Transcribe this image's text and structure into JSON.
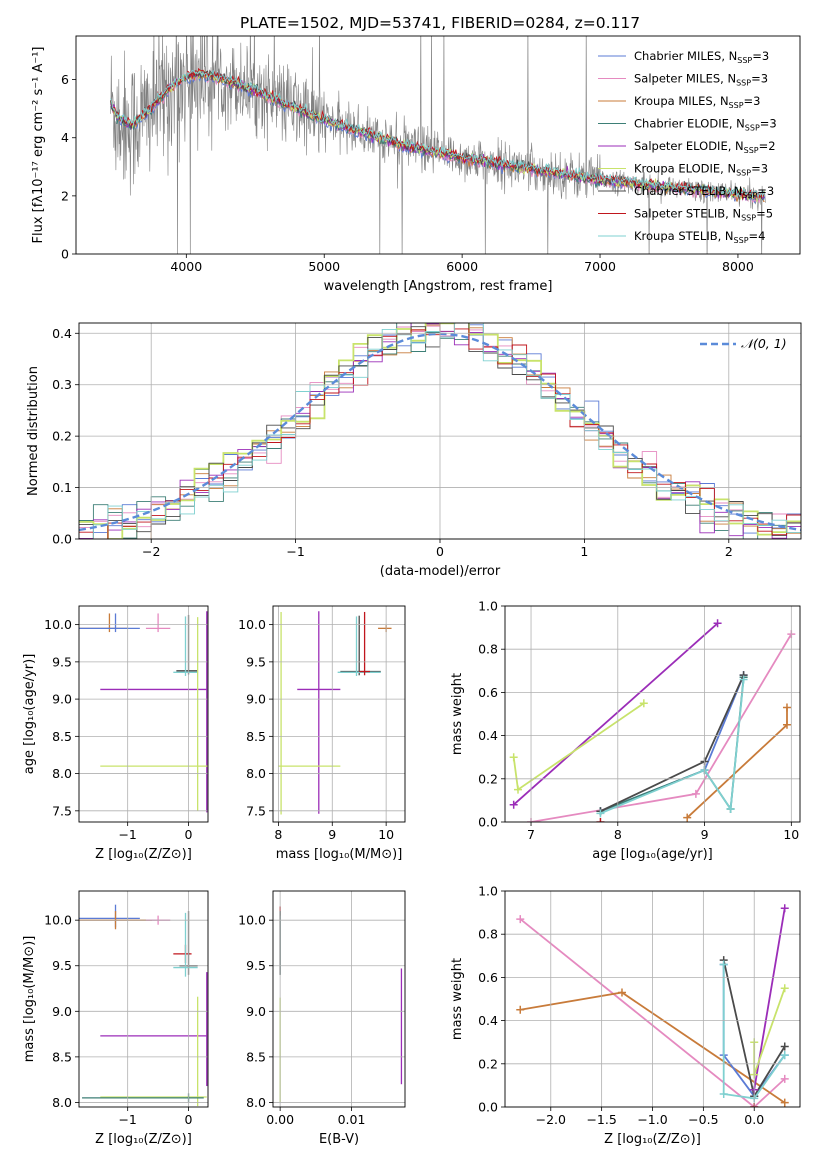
{
  "figure_title": "PLATE=1502, MJD=53741, FIBERID=0284, z=0.117",
  "colors": {
    "Chabrier MILES": "#5b7bd5",
    "Salpeter MILES": "#e58ac0",
    "Kroupa MILES": "#c87b3a",
    "Chabrier ELODIE": "#3d7f76",
    "Salpeter ELODIE": "#9b2db8",
    "Kroupa ELODIE": "#c8e36b",
    "Chabrier STELIB": "#4a4a4a",
    "Salpeter STELIB": "#c0161d",
    "Kroupa STELIB": "#7fd0d0",
    "data": "#808080",
    "normal": "#5b8bd9",
    "grid": "#b0b0b0"
  },
  "chart_data": [
    {
      "type": "line",
      "panel": "spectrum",
      "xlabel": "wavelength [Angstrom, rest frame]",
      "ylabel": "Flux [fλ10⁻¹⁷ erg cm⁻² s⁻¹ A⁻¹]",
      "xlim": [
        3200,
        8450
      ],
      "ylim": [
        0,
        7.5
      ],
      "xticks": [
        4000,
        5000,
        6000,
        7000,
        8000
      ],
      "yticks": [
        0,
        2,
        4,
        6
      ],
      "grid": false,
      "legend_position": "top-right",
      "legend": [
        {
          "name": "Chabrier MILES",
          "label": "Chabrier MILES, N",
          "sub": "SSP",
          "tail": "=3"
        },
        {
          "name": "Salpeter MILES",
          "label": "Salpeter MILES, N",
          "sub": "SSP",
          "tail": "=3"
        },
        {
          "name": "Kroupa MILES",
          "label": "Kroupa MILES, N",
          "sub": "SSP",
          "tail": "=3"
        },
        {
          "name": "Chabrier ELODIE",
          "label": "Chabrier ELODIE, N",
          "sub": "SSP",
          "tail": "=3"
        },
        {
          "name": "Salpeter ELODIE",
          "label": "Salpeter ELODIE, N",
          "sub": "SSP",
          "tail": "=2"
        },
        {
          "name": "Kroupa ELODIE",
          "label": "Kroupa ELODIE, N",
          "sub": "SSP",
          "tail": "=3"
        },
        {
          "name": "Chabrier STELIB",
          "label": "Chabrier STELIB, N",
          "sub": "SSP",
          "tail": "=3"
        },
        {
          "name": "Salpeter STELIB",
          "label": "Salpeter STELIB, N",
          "sub": "SSP",
          "tail": "=5"
        },
        {
          "name": "Kroupa STELIB",
          "label": "Kroupa STELIB, N",
          "sub": "SSP",
          "tail": "=4"
        }
      ],
      "model_continuum": {
        "x": [
          3450,
          3500,
          3600,
          3700,
          3800,
          3900,
          4000,
          4100,
          4200,
          4400,
          4600,
          4800,
          5000,
          5200,
          5400,
          5600,
          5800,
          6000,
          6200,
          6400,
          6600,
          6800,
          7000,
          7200,
          7400,
          7600,
          7800,
          8000,
          8200
        ],
        "y": [
          5.2,
          4.7,
          4.4,
          4.8,
          5.3,
          5.8,
          6.1,
          6.2,
          6.1,
          5.8,
          5.4,
          5.0,
          4.6,
          4.3,
          4.0,
          3.7,
          3.5,
          3.3,
          3.15,
          3.0,
          2.85,
          2.7,
          2.55,
          2.45,
          2.35,
          2.25,
          2.15,
          2.05,
          1.95
        ]
      }
    },
    {
      "type": "bar",
      "panel": "residual-histogram",
      "xlabel": "(data-model)/error",
      "ylabel": "Normed distribution",
      "xlim": [
        -2.5,
        2.5
      ],
      "ylim": [
        0,
        0.42
      ],
      "xticks": [
        -2,
        -1,
        0,
        1,
        2
      ],
      "yticks": [
        0.0,
        0.1,
        0.2,
        0.3,
        0.4
      ],
      "grid": true,
      "legend_position": "top-right",
      "legend": [
        {
          "name": "N(0,1)",
          "label": "𝒩(0, 1)"
        }
      ],
      "bin_width": 0.1,
      "bins_start": -2.5
    },
    {
      "type": "scatter",
      "panel": "age-vs-Z",
      "xlabel": "Z [log₁₀(Z/Z⊙)]",
      "ylabel": "age  [log₁₀(age/yr)]",
      "xlim": [
        -1.8,
        0.32
      ],
      "ylim": [
        7.35,
        10.25
      ],
      "xticks": [
        -1,
        0
      ],
      "yticks": [
        7.5,
        8.0,
        8.5,
        9.0,
        9.5,
        10.0
      ],
      "grid": true,
      "points": [
        {
          "series": "Kroupa MILES",
          "x": -1.3,
          "y": 9.95,
          "xerr": [
            0.5,
            0.3
          ],
          "yerr": [
            0.05,
            0.2
          ]
        },
        {
          "series": "Salpeter MILES",
          "x": -0.5,
          "y": 9.95,
          "xerr": [
            0.2,
            0.2
          ],
          "yerr": [
            0.05,
            0.2
          ]
        },
        {
          "series": "Chabrier MILES",
          "x": -1.2,
          "y": 9.95,
          "xerr": [
            0.6,
            0.4
          ],
          "yerr": [
            0.05,
            0.2
          ]
        },
        {
          "series": "Chabrier STELIB",
          "x": 0.0,
          "y": 9.38,
          "xerr": [
            0.2,
            0.15
          ],
          "yerr": [
            0.05,
            0.75
          ]
        },
        {
          "series": "Kroupa STELIB",
          "x": -0.05,
          "y": 9.36,
          "xerr": [
            0.2,
            0.2
          ],
          "yerr": [
            0.05,
            0.75
          ]
        },
        {
          "series": "Salpeter ELODIE",
          "x": 0.3,
          "y": 9.13,
          "xerr": [
            1.75,
            0.0
          ],
          "yerr": [
            1.65,
            1.05
          ]
        },
        {
          "series": "Kroupa ELODIE",
          "x": 0.15,
          "y": 8.1,
          "xerr": [
            1.6,
            0.2
          ],
          "yerr": [
            0.6,
            2.0
          ]
        }
      ]
    },
    {
      "type": "scatter",
      "panel": "age-vs-mass",
      "xlabel": "mass [log₁₀(M/M⊙)]",
      "ylabel": "",
      "xlim": [
        7.9,
        10.35
      ],
      "ylim": [
        7.35,
        10.25
      ],
      "xticks": [
        8,
        9,
        10
      ],
      "yticks": [
        7.5,
        8.0,
        8.5,
        9.0,
        9.5,
        10.0
      ],
      "grid": true,
      "points": [
        {
          "series": "Kroupa MILES",
          "x": 10.0,
          "y": 9.95,
          "xerr": [
            0.15,
            0.1
          ],
          "yerr": [
            0.05,
            0.05
          ]
        },
        {
          "series": "Chabrier STELIB",
          "x": 9.5,
          "y": 9.37,
          "xerr": [
            0.35,
            0.4
          ],
          "yerr": [
            0.05,
            0.75
          ]
        },
        {
          "series": "Kroupa STELIB",
          "x": 9.45,
          "y": 9.36,
          "xerr": [
            0.35,
            0.45
          ],
          "yerr": [
            0.05,
            0.75
          ]
        },
        {
          "series": "Salpeter STELIB",
          "x": 9.6,
          "y": 9.37,
          "xerr": [
            0.1,
            0.1
          ],
          "yerr": [
            0.05,
            0.8
          ]
        },
        {
          "series": "Salpeter ELODIE",
          "x": 8.75,
          "y": 9.13,
          "xerr": [
            0.4,
            0.4
          ],
          "yerr": [
            1.67,
            1.05
          ]
        },
        {
          "series": "Kroupa ELODIE",
          "x": 8.05,
          "y": 8.1,
          "xerr": [
            0.05,
            1.1
          ],
          "yerr": [
            0.65,
            2.07
          ]
        }
      ]
    },
    {
      "type": "line",
      "panel": "mass-weight-vs-age",
      "xlabel": "age  [log₁₀(age/yr)]",
      "ylabel": "mass weight",
      "xlim": [
        6.7,
        10.1
      ],
      "ylim": [
        0,
        1.0
      ],
      "xticks": [
        7,
        8,
        9,
        10
      ],
      "yticks": [
        0.0,
        0.2,
        0.4,
        0.6,
        0.8,
        1.0
      ],
      "grid": true,
      "series": [
        {
          "name": "Chabrier MILES",
          "x": [
            7.8,
            9.0,
            9.45
          ],
          "y": [
            0.05,
            0.24,
            0.68
          ]
        },
        {
          "name": "Salpeter MILES",
          "x": [
            7.0,
            8.9,
            10.0
          ],
          "y": [
            0.0,
            0.13,
            0.87
          ]
        },
        {
          "name": "Kroupa MILES",
          "x": [
            8.8,
            9.95,
            9.95
          ],
          "y": [
            0.02,
            0.45,
            0.53
          ]
        },
        {
          "name": "Chabrier ELODIE",
          "x": [
            7.8,
            9.0,
            9.3,
            9.45
          ],
          "y": [
            0.05,
            0.24,
            0.06,
            0.67
          ]
        },
        {
          "name": "Salpeter ELODIE",
          "x": [
            6.8,
            9.15
          ],
          "y": [
            0.08,
            0.92
          ]
        },
        {
          "name": "Kroupa ELODIE",
          "x": [
            6.8,
            6.85,
            8.3
          ],
          "y": [
            0.3,
            0.15,
            0.55
          ]
        },
        {
          "name": "Chabrier STELIB",
          "x": [
            7.8,
            9.0,
            9.45
          ],
          "y": [
            0.05,
            0.28,
            0.68
          ]
        },
        {
          "name": "Salpeter STELIB",
          "x": [
            7.8
          ],
          "y": [
            0.0
          ]
        },
        {
          "name": "Kroupa STELIB",
          "x": [
            7.8,
            9.0,
            9.3,
            9.45
          ],
          "y": [
            0.04,
            0.24,
            0.06,
            0.66
          ]
        }
      ]
    },
    {
      "type": "scatter",
      "panel": "mass-vs-Z",
      "xlabel": "Z [log₁₀(Z/Z⊙)]",
      "ylabel": "mass [log₁₀(M/M⊙)]",
      "xlim": [
        -1.8,
        0.32
      ],
      "ylim": [
        7.95,
        10.32
      ],
      "xticks": [
        -1,
        0
      ],
      "yticks": [
        8.0,
        8.5,
        9.0,
        9.5,
        10.0
      ],
      "grid": true,
      "points": [
        {
          "series": "Chabrier MILES",
          "x": -1.2,
          "y": 10.02,
          "xerr": [
            0.6,
            0.4
          ],
          "yerr": [
            0.1,
            0.15
          ]
        },
        {
          "series": "Kroupa MILES",
          "x": -1.2,
          "y": 10.0,
          "xerr": [
            0.6,
            0.6
          ],
          "yerr": [
            0.1,
            0.1
          ]
        },
        {
          "series": "Salpeter MILES",
          "x": -0.5,
          "y": 10.0,
          "xerr": [
            0.2,
            0.2
          ],
          "yerr": [
            0.05,
            0.05
          ]
        },
        {
          "series": "Salpeter STELIB",
          "x": -0.05,
          "y": 9.63,
          "xerr": [
            0.2,
            0.1
          ],
          "yerr": [
            0.1,
            0.1
          ]
        },
        {
          "series": "Chabrier STELIB",
          "x": 0.0,
          "y": 9.5,
          "xerr": [
            0.15,
            0.15
          ],
          "yerr": [
            0.1,
            0.6
          ]
        },
        {
          "series": "Kroupa STELIB",
          "x": -0.05,
          "y": 9.48,
          "xerr": [
            0.2,
            0.2
          ],
          "yerr": [
            0.1,
            0.6
          ]
        },
        {
          "series": "Salpeter ELODIE",
          "x": 0.3,
          "y": 8.73,
          "xerr": [
            1.75,
            0.0
          ],
          "yerr": [
            0.55,
            0.7
          ]
        },
        {
          "series": "Kroupa ELODIE",
          "x": 0.15,
          "y": 8.06,
          "xerr": [
            1.6,
            0.15
          ],
          "yerr": [
            0.1,
            1.1
          ]
        },
        {
          "series": "Chabrier ELODIE",
          "x": 0.0,
          "y": 8.05,
          "xerr": [
            1.75,
            0.25
          ],
          "yerr": [
            0.05,
            0.05
          ]
        }
      ]
    },
    {
      "type": "scatter",
      "panel": "mass-vs-EBV",
      "xlabel": "E(B-V)",
      "ylabel": "",
      "xlim": [
        -0.001,
        0.0175
      ],
      "ylim": [
        7.95,
        10.32
      ],
      "xticks": [
        0.0,
        0.01
      ],
      "yticks": [
        8.0,
        8.5,
        9.0,
        9.5,
        10.0
      ],
      "grid": true,
      "points": [
        {
          "series": "Salpeter STELIB",
          "x": 0.0,
          "y": 10.1,
          "xerr": [
            0,
            0
          ],
          "yerr": [
            0.05,
            0.05
          ]
        },
        {
          "series": "Kroupa STELIB",
          "x": 0.0,
          "y": 9.5,
          "xerr": [
            0,
            0
          ],
          "yerr": [
            0.1,
            0.6
          ]
        },
        {
          "series": "Chabrier STELIB",
          "x": 0.0,
          "y": 9.5,
          "xerr": [
            0,
            0
          ],
          "yerr": [
            0.1,
            0.6
          ]
        },
        {
          "series": "Kroupa ELODIE",
          "x": 0.0,
          "y": 8.05,
          "xerr": [
            0,
            0
          ],
          "yerr": [
            0.05,
            1.1
          ]
        },
        {
          "series": "Salpeter ELODIE",
          "x": 0.017,
          "y": 8.75,
          "xerr": [
            0,
            0
          ],
          "yerr": [
            0.55,
            0.72
          ]
        }
      ]
    },
    {
      "type": "line",
      "panel": "mass-weight-vs-Z",
      "xlabel": "Z [log₁₀(Z/Z⊙)]",
      "ylabel": "mass weight",
      "xlim": [
        -2.45,
        0.45
      ],
      "ylim": [
        0,
        1.0
      ],
      "xticks": [
        -2.0,
        -1.5,
        -1.0,
        -0.5,
        0.0
      ],
      "yticks": [
        0.0,
        0.2,
        0.4,
        0.6,
        0.8,
        1.0
      ],
      "grid": true,
      "series": [
        {
          "name": "Salpeter MILES",
          "x": [
            -2.3,
            0.0,
            0.3
          ],
          "y": [
            0.87,
            0.0,
            0.13
          ]
        },
        {
          "name": "Kroupa MILES",
          "x": [
            -2.3,
            -1.3,
            0.3
          ],
          "y": [
            0.45,
            0.53,
            0.02
          ]
        },
        {
          "name": "Chabrier MILES",
          "x": [
            -0.3,
            -0.3,
            0.0,
            0.3
          ],
          "y": [
            0.66,
            0.24,
            0.05,
            0.24
          ]
        },
        {
          "name": "Chabrier STELIB",
          "x": [
            -0.3,
            0.0,
            0.3
          ],
          "y": [
            0.68,
            0.05,
            0.28
          ]
        },
        {
          "name": "Kroupa STELIB",
          "x": [
            -0.3,
            -0.3,
            0.0,
            0.3
          ],
          "y": [
            0.66,
            0.06,
            0.04,
            0.24
          ]
        },
        {
          "name": "Salpeter ELODIE",
          "x": [
            0.0,
            0.3
          ],
          "y": [
            0.08,
            0.92
          ]
        },
        {
          "name": "Kroupa ELODIE",
          "x": [
            0.0,
            0.0,
            0.3
          ],
          "y": [
            0.3,
            0.15,
            0.55
          ]
        },
        {
          "name": "Salpeter STELIB",
          "x": [
            0.0
          ],
          "y": [
            0.0
          ]
        }
      ]
    }
  ]
}
